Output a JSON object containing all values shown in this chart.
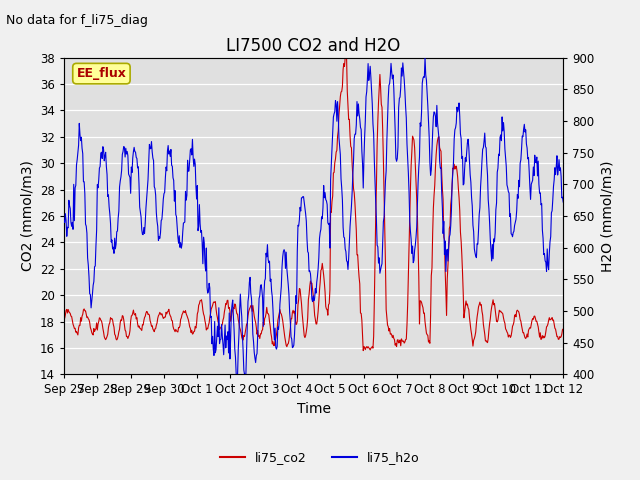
{
  "title": "LI7500 CO2 and H2O",
  "top_left_note": "No data for f_li75_diag",
  "xlabel": "Time",
  "ylabel_left": "CO2 (mmol/m3)",
  "ylabel_right": "H2O (mmol/m3)",
  "ylim_left": [
    14,
    38
  ],
  "ylim_right": [
    400,
    900
  ],
  "yticks_left": [
    14,
    16,
    18,
    20,
    22,
    24,
    26,
    28,
    30,
    32,
    34,
    36,
    38
  ],
  "yticks_right": [
    400,
    450,
    500,
    550,
    600,
    650,
    700,
    750,
    800,
    850,
    900
  ],
  "xtick_labels": [
    "Sep 27",
    "Sep 28",
    "Sep 29",
    "Sep 30",
    "Oct 1",
    "Oct 2",
    "Oct 3",
    "Oct 4",
    "Oct 5",
    "Oct 6",
    "Oct 7",
    "Oct 8",
    "Oct 9",
    "Oct 10",
    "Oct 11",
    "Oct 12"
  ],
  "plot_bg_color": "#e0e0e0",
  "fig_bg_color": "#f0f0f0",
  "grid_color": "#ffffff",
  "line_color_co2": "#cc0000",
  "line_color_h2o": "#0000dd",
  "legend_label_co2": "li75_co2",
  "legend_label_h2o": "li75_h2o",
  "ee_flux_box_color": "#ffff99",
  "ee_flux_border_color": "#aaaa00",
  "ee_flux_text_color": "#aa0000",
  "title_fontsize": 12,
  "axis_label_fontsize": 10,
  "tick_fontsize": 8.5,
  "note_fontsize": 9,
  "line_width": 0.8
}
